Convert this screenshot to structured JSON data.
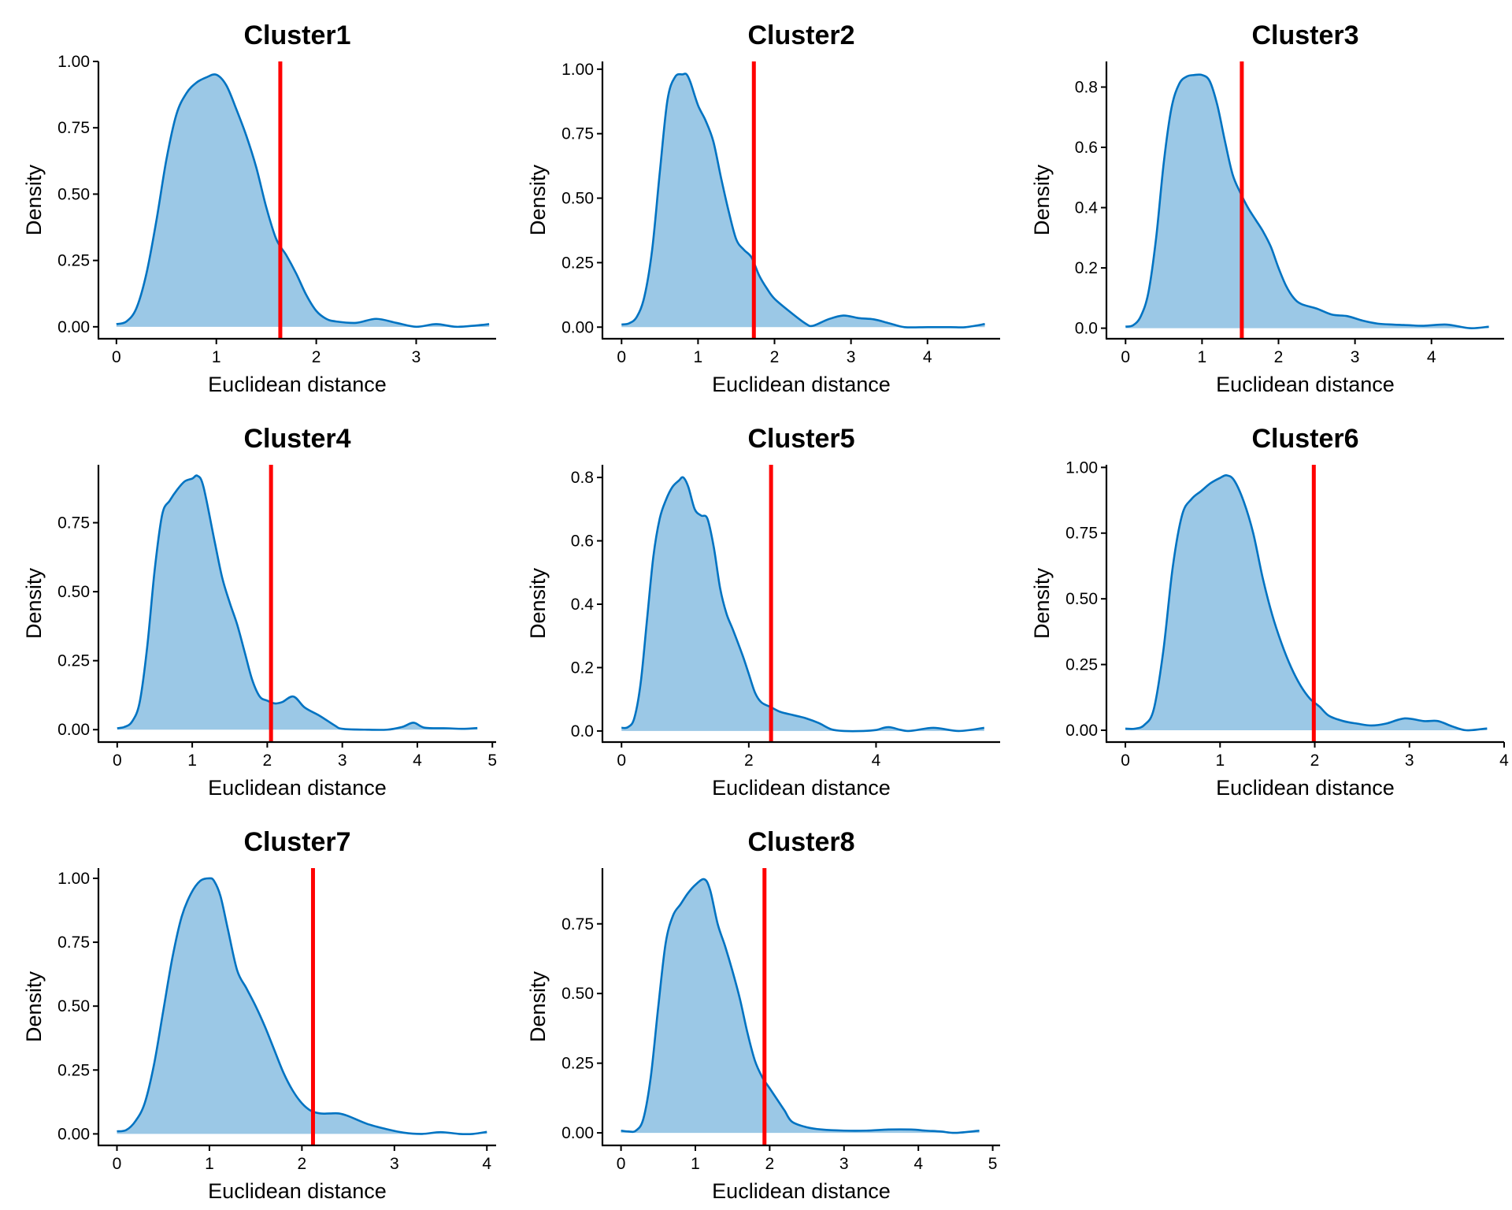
{
  "figure": {
    "layout": "3x3 grid (8 panels)"
  },
  "colors": {
    "fill": "#9BC8E6",
    "curve": "#0073C2",
    "threshold_line": "#FF0000",
    "axis": "#000000"
  },
  "chart_data": [
    {
      "type": "area",
      "title": "Cluster1",
      "xlabel": "Euclidean distance",
      "ylabel": "Density",
      "xlim": [
        -0.18,
        3.8
      ],
      "ylim": [
        -0.045,
        1.0
      ],
      "xticks": [
        0,
        1,
        2,
        3
      ],
      "yticks": [
        0,
        0.25,
        0.5,
        0.75,
        1.0
      ],
      "ytick_labels": [
        "0.00",
        "0.25",
        "0.50",
        "0.75",
        "1.00"
      ],
      "threshold": 1.64,
      "x": [
        0,
        0.1,
        0.2,
        0.3,
        0.4,
        0.5,
        0.6,
        0.7,
        0.8,
        0.9,
        1.0,
        1.1,
        1.2,
        1.3,
        1.4,
        1.5,
        1.6,
        1.7,
        1.8,
        1.9,
        2.0,
        2.1,
        2.2,
        2.4,
        2.6,
        2.8,
        3.0,
        3.2,
        3.4,
        3.6,
        3.73
      ],
      "y": [
        0.01,
        0.02,
        0.07,
        0.2,
        0.4,
        0.63,
        0.8,
        0.88,
        0.92,
        0.94,
        0.95,
        0.91,
        0.82,
        0.72,
        0.6,
        0.45,
        0.33,
        0.27,
        0.2,
        0.12,
        0.06,
        0.03,
        0.02,
        0.015,
        0.03,
        0.015,
        0.0,
        0.01,
        0.0,
        0.005,
        0.01
      ]
    },
    {
      "type": "area",
      "title": "Cluster2",
      "xlabel": "Euclidean distance",
      "ylabel": "Density",
      "xlim": [
        -0.25,
        4.95
      ],
      "ylim": [
        -0.045,
        1.03
      ],
      "xticks": [
        0,
        1,
        2,
        3,
        4
      ],
      "yticks": [
        0,
        0.25,
        0.5,
        0.75,
        1.0
      ],
      "ytick_labels": [
        "0.00",
        "0.25",
        "0.50",
        "0.75",
        "1.00"
      ],
      "threshold": 1.73,
      "x": [
        0,
        0.1,
        0.2,
        0.3,
        0.4,
        0.5,
        0.6,
        0.7,
        0.8,
        0.85,
        0.9,
        1.0,
        1.1,
        1.2,
        1.3,
        1.4,
        1.5,
        1.6,
        1.7,
        1.8,
        1.9,
        2.0,
        2.2,
        2.4,
        2.5,
        2.7,
        2.9,
        3.1,
        3.3,
        3.5,
        3.7,
        4.0,
        4.3,
        4.5,
        4.75
      ],
      "y": [
        0.01,
        0.015,
        0.04,
        0.12,
        0.3,
        0.6,
        0.88,
        0.97,
        0.98,
        0.98,
        0.95,
        0.86,
        0.8,
        0.72,
        0.58,
        0.45,
        0.34,
        0.3,
        0.27,
        0.2,
        0.15,
        0.11,
        0.06,
        0.015,
        0.005,
        0.03,
        0.045,
        0.035,
        0.03,
        0.015,
        0.0,
        0.0,
        0.0,
        0.0,
        0.012
      ]
    },
    {
      "type": "area",
      "title": "Cluster3",
      "xlabel": "Euclidean distance",
      "ylabel": "Density",
      "xlim": [
        -0.25,
        4.95
      ],
      "ylim": [
        -0.035,
        0.885
      ],
      "xticks": [
        0,
        1,
        2,
        3,
        4
      ],
      "yticks": [
        0,
        0.2,
        0.4,
        0.6,
        0.8
      ],
      "ytick_labels": [
        "0.0",
        "0.2",
        "0.4",
        "0.6",
        "0.8"
      ],
      "threshold": 1.52,
      "x": [
        0,
        0.1,
        0.2,
        0.3,
        0.4,
        0.5,
        0.6,
        0.7,
        0.8,
        0.9,
        1.0,
        1.1,
        1.2,
        1.3,
        1.4,
        1.5,
        1.6,
        1.7,
        1.8,
        1.9,
        2.0,
        2.1,
        2.2,
        2.3,
        2.5,
        2.7,
        2.9,
        3.1,
        3.3,
        3.5,
        3.7,
        3.9,
        4.2,
        4.5,
        4.75
      ],
      "y": [
        0.005,
        0.01,
        0.04,
        0.12,
        0.3,
        0.55,
        0.73,
        0.81,
        0.835,
        0.84,
        0.84,
        0.82,
        0.74,
        0.62,
        0.51,
        0.45,
        0.4,
        0.36,
        0.32,
        0.27,
        0.2,
        0.14,
        0.1,
        0.08,
        0.065,
        0.045,
        0.04,
        0.025,
        0.015,
        0.012,
        0.01,
        0.008,
        0.012,
        0.0,
        0.005
      ]
    },
    {
      "type": "area",
      "title": "Cluster4",
      "xlabel": "Euclidean distance",
      "ylabel": "Density",
      "xlim": [
        -0.25,
        5.05
      ],
      "ylim": [
        -0.045,
        0.96
      ],
      "xticks": [
        0,
        1,
        2,
        3,
        4,
        5
      ],
      "yticks": [
        0,
        0.25,
        0.5,
        0.75
      ],
      "ytick_labels": [
        "0.00",
        "0.25",
        "0.50",
        "0.75"
      ],
      "threshold": 2.05,
      "x": [
        0,
        0.1,
        0.2,
        0.3,
        0.4,
        0.5,
        0.6,
        0.7,
        0.8,
        0.9,
        1.0,
        1.07,
        1.15,
        1.3,
        1.4,
        1.5,
        1.6,
        1.7,
        1.8,
        1.9,
        2.0,
        2.1,
        2.2,
        2.35,
        2.5,
        2.7,
        2.9,
        3.0,
        3.3,
        3.6,
        3.8,
        3.95,
        4.1,
        4.4,
        4.6,
        4.8
      ],
      "y": [
        0.005,
        0.01,
        0.03,
        0.1,
        0.3,
        0.58,
        0.78,
        0.83,
        0.87,
        0.9,
        0.91,
        0.92,
        0.88,
        0.68,
        0.55,
        0.46,
        0.38,
        0.28,
        0.18,
        0.12,
        0.105,
        0.095,
        0.1,
        0.12,
        0.08,
        0.05,
        0.015,
        0.003,
        0.0,
        0.0,
        0.01,
        0.025,
        0.007,
        0.005,
        0.003,
        0.006
      ]
    },
    {
      "type": "area",
      "title": "Cluster5",
      "xlabel": "Euclidean distance",
      "ylabel": "Density",
      "xlim": [
        -0.3,
        5.95
      ],
      "ylim": [
        -0.035,
        0.84
      ],
      "xticks": [
        0,
        2,
        4
      ],
      "yticks": [
        0,
        0.2,
        0.4,
        0.6,
        0.8
      ],
      "ytick_labels": [
        "0.0",
        "0.2",
        "0.4",
        "0.6",
        "0.8"
      ],
      "threshold": 2.35,
      "x": [
        0,
        0.1,
        0.2,
        0.3,
        0.4,
        0.5,
        0.6,
        0.7,
        0.8,
        0.9,
        0.97,
        1.05,
        1.15,
        1.25,
        1.35,
        1.45,
        1.55,
        1.65,
        1.75,
        1.9,
        2.0,
        2.1,
        2.2,
        2.35,
        2.5,
        2.7,
        2.9,
        3.1,
        3.3,
        3.5,
        3.8,
        4.0,
        4.2,
        4.5,
        4.9,
        5.3,
        5.7
      ],
      "y": [
        0.01,
        0.012,
        0.04,
        0.15,
        0.35,
        0.55,
        0.67,
        0.73,
        0.77,
        0.79,
        0.8,
        0.77,
        0.7,
        0.68,
        0.67,
        0.58,
        0.45,
        0.37,
        0.32,
        0.24,
        0.18,
        0.12,
        0.09,
        0.075,
        0.06,
        0.05,
        0.04,
        0.025,
        0.005,
        0.0,
        0.0,
        0.003,
        0.012,
        0.0,
        0.01,
        0.0,
        0.01
      ]
    },
    {
      "type": "area",
      "title": "Cluster6",
      "xlabel": "Euclidean distance",
      "ylabel": "Density",
      "xlim": [
        -0.2,
        4.0
      ],
      "ylim": [
        -0.045,
        1.01
      ],
      "xticks": [
        0,
        1,
        2,
        3,
        4
      ],
      "yticks": [
        0,
        0.25,
        0.5,
        0.75,
        1.0
      ],
      "ytick_labels": [
        "0.00",
        "0.25",
        "0.50",
        "0.75",
        "1.00"
      ],
      "threshold": 1.99,
      "x": [
        0,
        0.1,
        0.2,
        0.3,
        0.4,
        0.5,
        0.6,
        0.7,
        0.8,
        0.9,
        1.0,
        1.07,
        1.15,
        1.25,
        1.35,
        1.45,
        1.55,
        1.65,
        1.75,
        1.85,
        1.95,
        2.05,
        2.15,
        2.3,
        2.45,
        2.6,
        2.75,
        2.95,
        3.15,
        3.3,
        3.45,
        3.6,
        3.82
      ],
      "y": [
        0.006,
        0.006,
        0.02,
        0.08,
        0.3,
        0.62,
        0.82,
        0.88,
        0.91,
        0.94,
        0.96,
        0.97,
        0.95,
        0.87,
        0.75,
        0.58,
        0.44,
        0.33,
        0.24,
        0.17,
        0.12,
        0.09,
        0.055,
        0.035,
        0.025,
        0.018,
        0.025,
        0.045,
        0.035,
        0.035,
        0.015,
        0.0,
        0.007
      ]
    },
    {
      "type": "area",
      "title": "Cluster7",
      "xlabel": "Euclidean distance",
      "ylabel": "Density",
      "xlim": [
        -0.2,
        4.1
      ],
      "ylim": [
        -0.045,
        1.04
      ],
      "xticks": [
        0,
        1,
        2,
        3,
        4
      ],
      "yticks": [
        0,
        0.25,
        0.5,
        0.75,
        1.0
      ],
      "ytick_labels": [
        "0.00",
        "0.25",
        "0.50",
        "0.75",
        "1.00"
      ],
      "threshold": 2.12,
      "x": [
        0,
        0.1,
        0.2,
        0.3,
        0.4,
        0.5,
        0.6,
        0.7,
        0.8,
        0.9,
        1.0,
        1.05,
        1.12,
        1.2,
        1.3,
        1.4,
        1.5,
        1.6,
        1.7,
        1.8,
        1.9,
        2.0,
        2.1,
        2.2,
        2.3,
        2.4,
        2.5,
        2.7,
        2.9,
        3.1,
        3.3,
        3.5,
        3.7,
        3.85,
        4.0
      ],
      "y": [
        0.01,
        0.015,
        0.05,
        0.12,
        0.27,
        0.48,
        0.69,
        0.85,
        0.94,
        0.99,
        1.0,
        0.99,
        0.93,
        0.8,
        0.64,
        0.57,
        0.5,
        0.42,
        0.33,
        0.24,
        0.17,
        0.12,
        0.09,
        0.08,
        0.08,
        0.08,
        0.07,
        0.04,
        0.02,
        0.005,
        0.0,
        0.007,
        0.0,
        0.0,
        0.008
      ]
    },
    {
      "type": "area",
      "title": "Cluster8",
      "xlabel": "Euclidean distance",
      "ylabel": "Density",
      "xlim": [
        -0.25,
        5.1
      ],
      "ylim": [
        -0.045,
        0.95
      ],
      "xticks": [
        0,
        1,
        2,
        3,
        4,
        5
      ],
      "yticks": [
        0,
        0.25,
        0.5,
        0.75
      ],
      "ytick_labels": [
        "0.00",
        "0.25",
        "0.50",
        "0.75"
      ],
      "threshold": 1.93,
      "x": [
        0,
        0.1,
        0.2,
        0.3,
        0.4,
        0.5,
        0.6,
        0.7,
        0.8,
        0.9,
        1.0,
        1.12,
        1.2,
        1.3,
        1.4,
        1.5,
        1.6,
        1.7,
        1.8,
        1.9,
        2.0,
        2.1,
        2.2,
        2.3,
        2.5,
        2.7,
        3.0,
        3.3,
        3.6,
        3.9,
        4.1,
        4.3,
        4.5,
        4.82
      ],
      "y": [
        0.008,
        0.005,
        0.008,
        0.05,
        0.2,
        0.45,
        0.68,
        0.78,
        0.82,
        0.86,
        0.89,
        0.91,
        0.87,
        0.75,
        0.67,
        0.58,
        0.48,
        0.36,
        0.26,
        0.2,
        0.16,
        0.12,
        0.08,
        0.04,
        0.02,
        0.012,
        0.008,
        0.008,
        0.012,
        0.012,
        0.008,
        0.005,
        0.0,
        0.008
      ]
    }
  ]
}
